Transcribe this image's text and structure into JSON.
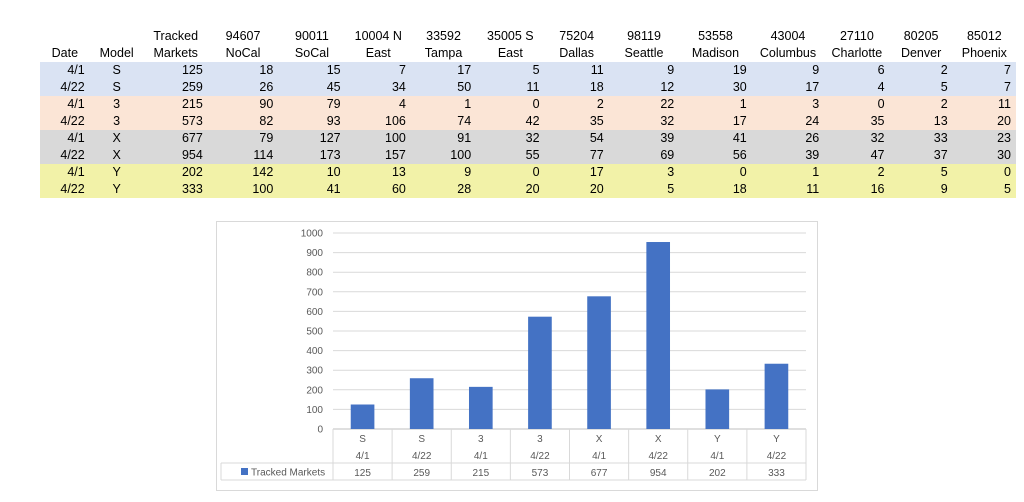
{
  "table": {
    "headers": [
      [
        "",
        "Date"
      ],
      [
        "",
        "Model"
      ],
      [
        "Tracked",
        "Markets"
      ],
      [
        "94607",
        "NoCal"
      ],
      [
        "90011",
        "SoCal"
      ],
      [
        "10004 N",
        "East"
      ],
      [
        "33592",
        "Tampa"
      ],
      [
        "35005 S",
        "East"
      ],
      [
        "75204",
        "Dallas"
      ],
      [
        "98119",
        "Seattle"
      ],
      [
        "53558",
        "Madison"
      ],
      [
        "43004",
        "Columbus"
      ],
      [
        "27110",
        "Charlotte"
      ],
      [
        "80205",
        "Denver"
      ],
      [
        "85012",
        "Phoenix"
      ]
    ],
    "rows": [
      {
        "date": "4/1",
        "model": "S",
        "values": [
          125,
          18,
          15,
          7,
          17,
          5,
          11,
          9,
          19,
          9,
          6,
          2,
          7
        ]
      },
      {
        "date": "4/22",
        "model": "S",
        "values": [
          259,
          26,
          45,
          34,
          50,
          11,
          18,
          12,
          30,
          17,
          4,
          5,
          7
        ]
      },
      {
        "date": "4/1",
        "model": "3",
        "values": [
          215,
          90,
          79,
          4,
          1,
          0,
          2,
          22,
          1,
          3,
          0,
          2,
          11
        ]
      },
      {
        "date": "4/22",
        "model": "3",
        "values": [
          573,
          82,
          93,
          106,
          74,
          42,
          35,
          32,
          17,
          24,
          35,
          13,
          20
        ]
      },
      {
        "date": "4/1",
        "model": "X",
        "values": [
          677,
          79,
          127,
          100,
          91,
          32,
          54,
          39,
          41,
          26,
          32,
          33,
          23
        ]
      },
      {
        "date": "4/22",
        "model": "X",
        "values": [
          954,
          114,
          173,
          157,
          100,
          55,
          77,
          69,
          56,
          39,
          47,
          37,
          30
        ]
      },
      {
        "date": "4/1",
        "model": "Y",
        "values": [
          202,
          142,
          10,
          13,
          9,
          0,
          17,
          3,
          0,
          1,
          2,
          5,
          0
        ]
      },
      {
        "date": "4/22",
        "model": "Y",
        "values": [
          333,
          100,
          41,
          60,
          28,
          20,
          20,
          5,
          18,
          11,
          16,
          9,
          5
        ]
      }
    ],
    "model_colors": {
      "S": "#dae3f3",
      "3": "#fbe5d6",
      "X": "#d9d9d9",
      "Y": "#f2f2a8"
    }
  },
  "chart_data": {
    "type": "bar",
    "categories": [
      [
        "S",
        "4/1"
      ],
      [
        "S",
        "4/22"
      ],
      [
        "3",
        "4/1"
      ],
      [
        "3",
        "4/22"
      ],
      [
        "X",
        "4/1"
      ],
      [
        "X",
        "4/22"
      ],
      [
        "Y",
        "4/1"
      ],
      [
        "Y",
        "4/22"
      ]
    ],
    "series": [
      {
        "name": "Tracked Markets",
        "values": [
          125,
          259,
          215,
          573,
          677,
          954,
          202,
          333
        ],
        "color": "#4472c4"
      }
    ],
    "ylim": [
      0,
      1000
    ],
    "yticks": [
      0,
      100,
      200,
      300,
      400,
      500,
      600,
      700,
      800,
      900,
      1000
    ],
    "grid": true,
    "legend": "data-table",
    "title": "",
    "xlabel": "",
    "ylabel": ""
  }
}
